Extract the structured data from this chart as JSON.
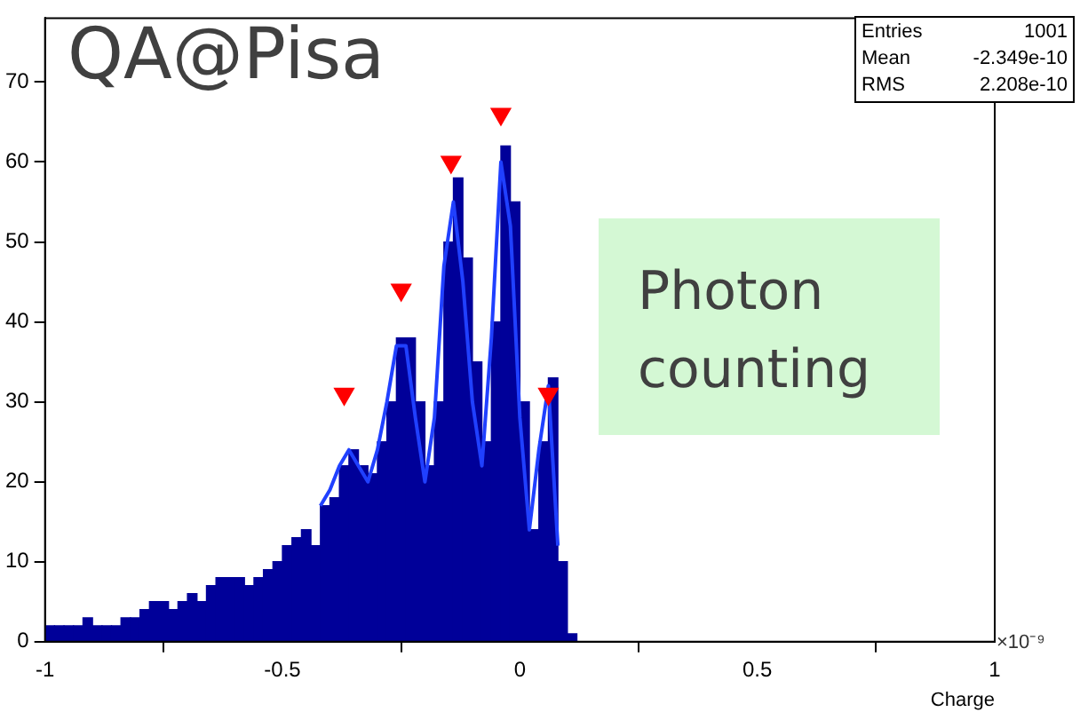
{
  "chart_data": {
    "type": "histogram",
    "title": "QA@Pisa",
    "xlabel": "Charge",
    "bins": [
      -1,
      -0.98,
      -0.96,
      -0.94,
      -0.92,
      -0.9,
      -0.88,
      -0.86,
      -0.84,
      -0.82,
      -0.8,
      -0.78,
      -0.76,
      -0.74,
      -0.72,
      -0.7,
      -0.68,
      -0.66,
      -0.64,
      -0.62,
      -0.6,
      -0.58,
      -0.56,
      -0.54,
      -0.52,
      -0.5,
      -0.48,
      -0.46,
      -0.44,
      -0.42,
      -0.4,
      -0.38,
      -0.36,
      -0.34,
      -0.32,
      -0.3,
      -0.28,
      -0.26,
      -0.24,
      -0.22,
      -0.2,
      -0.18,
      -0.16,
      -0.14,
      -0.12,
      -0.1,
      -0.08,
      -0.06,
      -0.04,
      -0.02,
      0,
      0.02,
      0.04,
      0.06,
      0.08,
      0.1,
      0.12
    ],
    "values": [
      2,
      2,
      2,
      2,
      3,
      2,
      2,
      2,
      3,
      3,
      4,
      5,
      5,
      4,
      5,
      6,
      5,
      7,
      8,
      8,
      8,
      7,
      8,
      9,
      10,
      12,
      13,
      14,
      12,
      17,
      18,
      22,
      24,
      22,
      21,
      25,
      30,
      38,
      38,
      30,
      22,
      30,
      50,
      58,
      48,
      35,
      25,
      40,
      62,
      55,
      30,
      14,
      25,
      33,
      10,
      1
    ],
    "color": "#000099",
    "series": [
      {
        "type": "line",
        "color": "#2040ff",
        "x": [
          -0.42,
          -0.4,
          -0.38,
          -0.36,
          -0.34,
          -0.32,
          -0.3,
          -0.28,
          -0.26,
          -0.24,
          -0.22,
          -0.2,
          -0.18,
          -0.16,
          -0.14,
          -0.12,
          -0.1,
          -0.08,
          -0.06,
          -0.04,
          -0.02,
          0,
          0.02,
          0.04,
          0.06,
          0.08
        ],
        "values": [
          17,
          19,
          22,
          24,
          22,
          20,
          24,
          30,
          37,
          37,
          28,
          20,
          28,
          47,
          55,
          45,
          30,
          22,
          38,
          60,
          52,
          28,
          14,
          24,
          32,
          12
        ]
      },
      {
        "type": "scatter",
        "color": "#ff0000",
        "marker": "triangle",
        "x": [
          -0.37,
          -0.25,
          -0.145,
          -0.04,
          0.06
        ],
        "values": [
          31,
          44,
          60,
          66,
          31
        ]
      }
    ],
    "xlim": [
      -1,
      1
    ],
    "xticks": [
      -1,
      -0.5,
      0,
      0.5,
      1
    ],
    "ylim": [
      0,
      78
    ],
    "yticks": [
      0,
      10,
      20,
      30,
      40,
      50,
      60,
      70
    ],
    "grid": false,
    "legend": false,
    "annotations": [
      "Entries 1001",
      "Mean -2.349e-10",
      "RMS 2.208e-10",
      "Photon counting",
      "×10⁻⁹"
    ]
  }
}
